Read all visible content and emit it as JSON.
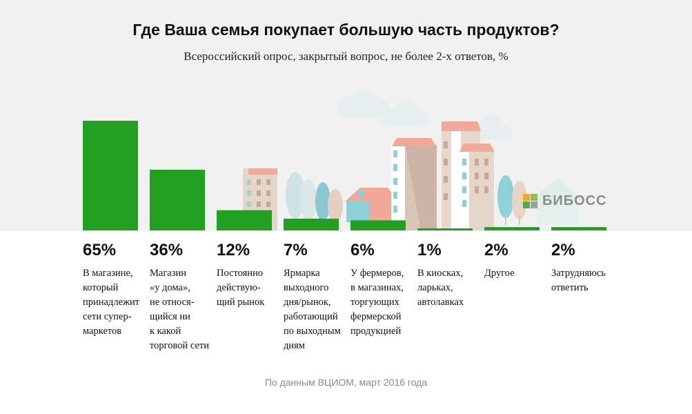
{
  "chart_data": {
    "type": "bar",
    "title": "Где Ваша семья покупает большую часть продуктов?",
    "subtitle": "Всероссийский опрос, закрытый вопрос, не более 2-х ответов, %",
    "categories": [
      "В магазине,\nкоторый\nпринадлежит\nсети супер-\nмаркетов",
      "Магазин\n«у дома»,\nне относя-\nщийся ни\nк какой\nторговой сети",
      "Постоянно\nдействую-\nщий рынок",
      "Ярмарка\nвыходного\nдня/рынок,\nработающий\nпо выходным\nдням",
      "У фермеров,\nв магазинах,\nторгующих\nфермерской\nпродукцией",
      "В киосках,\nларьках,\nавтолавках",
      "Другое",
      "Затрудняюсь\nответить"
    ],
    "values": [
      65,
      36,
      12,
      7,
      6,
      1,
      2,
      2
    ],
    "value_labels": [
      "65%",
      "36%",
      "12%",
      "7%",
      "6%",
      "1%",
      "2%",
      "2%"
    ],
    "ylim": [
      0,
      65
    ],
    "bar_color": "#21a021",
    "grid": false
  },
  "source": "По данным ВЦИОМ, март 2016 года",
  "logo": {
    "text": "БИБОСС",
    "colors": [
      "#f6a623",
      "#8bc34a",
      "#4caf50",
      "#9e9e9e"
    ]
  }
}
